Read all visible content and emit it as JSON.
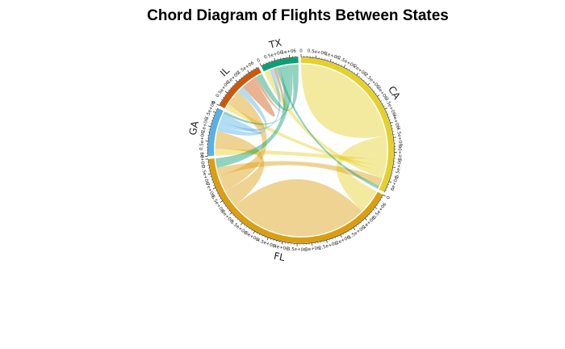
{
  "title": "Chord Diagram of Flights Between States",
  "sectors": [
    {
      "name": "CA",
      "color": "#E6D02B"
    },
    {
      "name": "FL",
      "color": "#DC9E0D"
    },
    {
      "name": "GA",
      "color": "#56B1E8"
    },
    {
      "name": "IL",
      "color": "#D0560A"
    },
    {
      "name": "TX",
      "color": "#0E9E73"
    }
  ],
  "link_color_notes": "links drawn translucent in the color of their source sector",
  "chart_data": {
    "type": "chord",
    "title": "Chord Diagram of Flights Between States",
    "sectors": [
      "CA",
      "FL",
      "GA",
      "IL",
      "TX"
    ],
    "flows": [
      {
        "from": "CA",
        "to": "CA",
        "value": 2200000
      },
      {
        "from": "CA",
        "to": "FL",
        "value": 900000
      },
      {
        "from": "CA",
        "to": "GA",
        "value": 250000
      },
      {
        "from": "CA",
        "to": "IL",
        "value": 200000
      },
      {
        "from": "CA",
        "to": "TX",
        "value": 220000
      },
      {
        "from": "FL",
        "to": "FL",
        "value": 2600000
      },
      {
        "from": "FL",
        "to": "GA",
        "value": 650000
      },
      {
        "from": "FL",
        "to": "IL",
        "value": 600000
      },
      {
        "from": "FL",
        "to": "CA",
        "value": 300000
      },
      {
        "from": "GA",
        "to": "IL",
        "value": 220000
      },
      {
        "from": "GA",
        "to": "TX",
        "value": 150000
      },
      {
        "from": "GA",
        "to": "GA",
        "value": 150000
      },
      {
        "from": "IL",
        "to": "IL",
        "value": 250000
      },
      {
        "from": "IL",
        "to": "TX",
        "value": 100000
      },
      {
        "from": "TX",
        "to": "CA",
        "value": 120000
      },
      {
        "from": "TX",
        "to": "FL",
        "value": 350000
      },
      {
        "from": "TX",
        "to": "GA",
        "value": 100000
      },
      {
        "from": "TX",
        "to": "IL",
        "value": 250000
      }
    ],
    "tick_step": 100000
  }
}
